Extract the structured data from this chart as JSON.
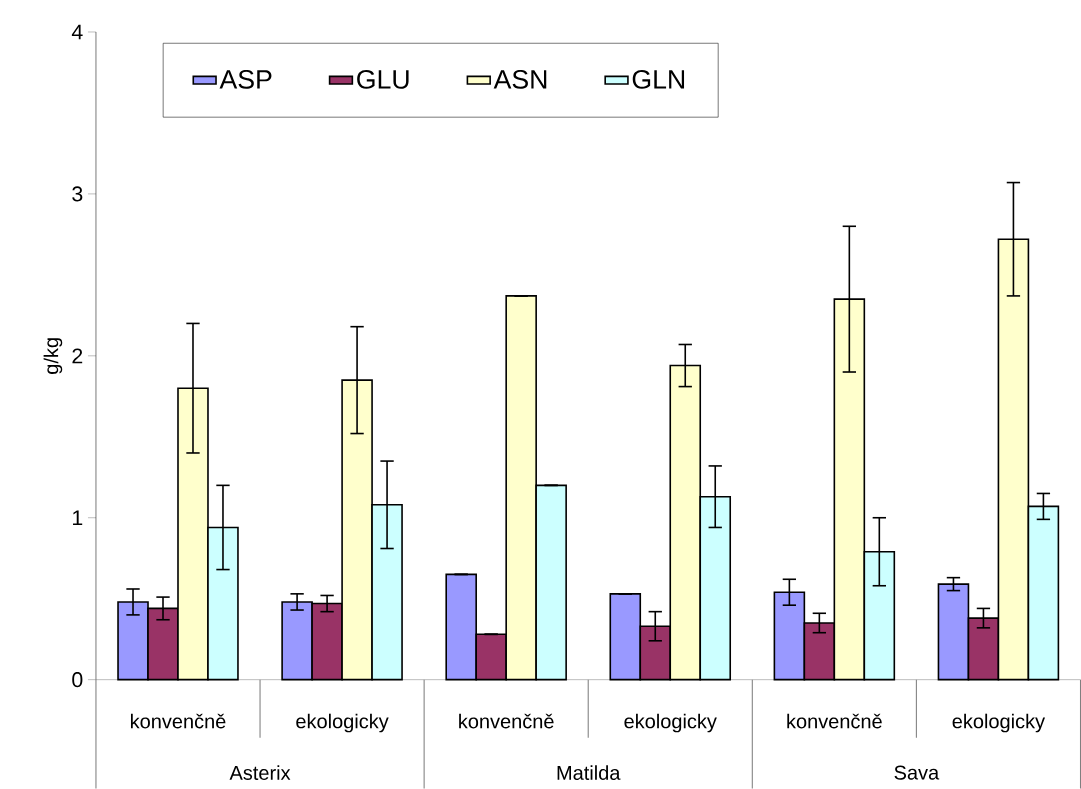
{
  "chart_data": {
    "type": "bar",
    "ylabel": "g/kg",
    "categories": [
      "konvenčně",
      "ekologicky",
      "konvenčně",
      "ekologicky",
      "konvenčně",
      "ekologicky"
    ],
    "annotations": [
      "Asterix",
      "Matilda",
      "Sava"
    ],
    "series": [
      {
        "name": "ASP",
        "color": "#9999ff",
        "values": [
          0.48,
          0.48,
          0.65,
          0.53,
          0.54,
          0.59
        ],
        "errors": [
          0.08,
          0.05,
          null,
          null,
          0.08,
          0.04
        ]
      },
      {
        "name": "GLU",
        "color": "#993366",
        "values": [
          0.44,
          0.47,
          0.28,
          0.33,
          0.35,
          0.38
        ],
        "errors": [
          0.07,
          0.05,
          null,
          0.09,
          0.06,
          0.06
        ]
      },
      {
        "name": "ASN",
        "color": "#ffffcc",
        "values": [
          1.8,
          1.85,
          2.37,
          1.94,
          2.35,
          2.72
        ],
        "errors": [
          0.4,
          0.33,
          null,
          0.13,
          0.45,
          0.35
        ]
      },
      {
        "name": "GLN",
        "color": "#ccffff",
        "values": [
          0.94,
          1.08,
          1.2,
          1.13,
          0.79,
          1.07
        ],
        "errors": [
          0.26,
          0.27,
          null,
          0.19,
          0.21,
          0.08
        ]
      }
    ],
    "ylim": [
      0,
      4
    ],
    "yticks": [
      0,
      1,
      2,
      3,
      4
    ],
    "legend": "top left"
  }
}
